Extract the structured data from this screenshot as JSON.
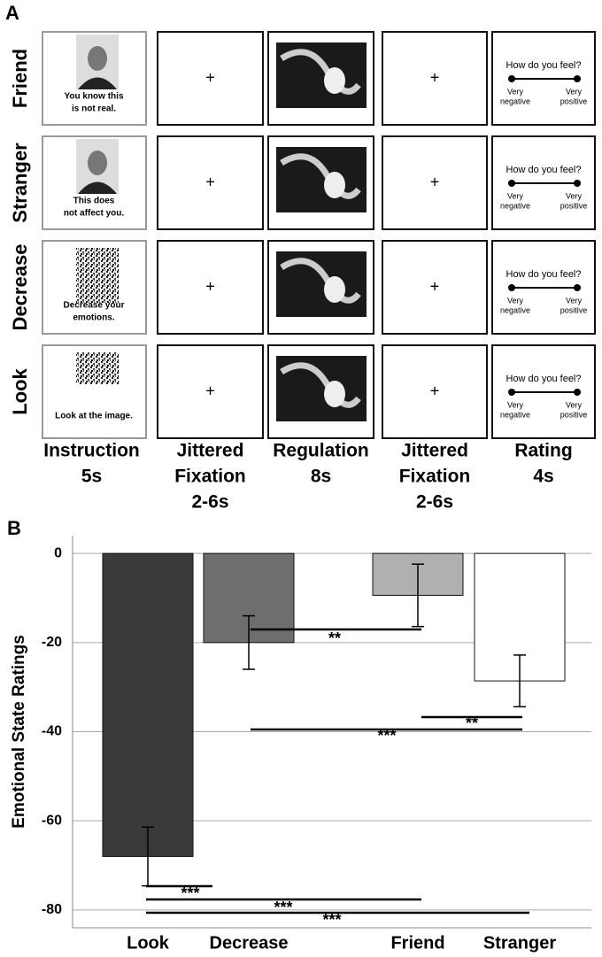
{
  "panel_a": {
    "label": "A",
    "rows": [
      {
        "condition": "Friend",
        "instruction": [
          "You know this",
          "is not real."
        ]
      },
      {
        "condition": "Stranger",
        "instruction": [
          "This does",
          "not affect you."
        ]
      },
      {
        "condition": "Decrease",
        "instruction": [
          "Decrease your",
          "emotions."
        ]
      },
      {
        "condition": "Look",
        "instruction": [
          "Look at the image."
        ]
      }
    ],
    "fixation": "+",
    "rating": {
      "question": "How do you feel?",
      "low": [
        "Very",
        "negative"
      ],
      "high": [
        "Very",
        "positive"
      ]
    },
    "columns": [
      [
        "Instruction",
        "5s"
      ],
      [
        "Jittered",
        "Fixation",
        "2-6s"
      ],
      [
        "Regulation",
        "8s"
      ],
      [
        "Jittered",
        "Fixation",
        "2-6s"
      ],
      [
        "Rating",
        "4s"
      ]
    ]
  },
  "panel_b": {
    "label": "B"
  },
  "chart_data": {
    "type": "bar",
    "ylabel": "Emotional State Ratings",
    "categories": [
      "Look",
      "Decrease",
      "Friend",
      "Stranger"
    ],
    "values": [
      -68,
      -20,
      -9.4,
      -28.6
    ],
    "errors": [
      6.6,
      6,
      7,
      5.8
    ],
    "colors": [
      "#3a3a3a",
      "#6e6e6e",
      "#b0b0b0",
      "#ffffff"
    ],
    "ylim": [
      -84,
      4
    ],
    "yticks": [
      0,
      -20,
      -40,
      -60,
      -80
    ],
    "grid": true,
    "annotations": [
      "**",
      "***",
      "**",
      "***",
      "***",
      "***"
    ]
  }
}
